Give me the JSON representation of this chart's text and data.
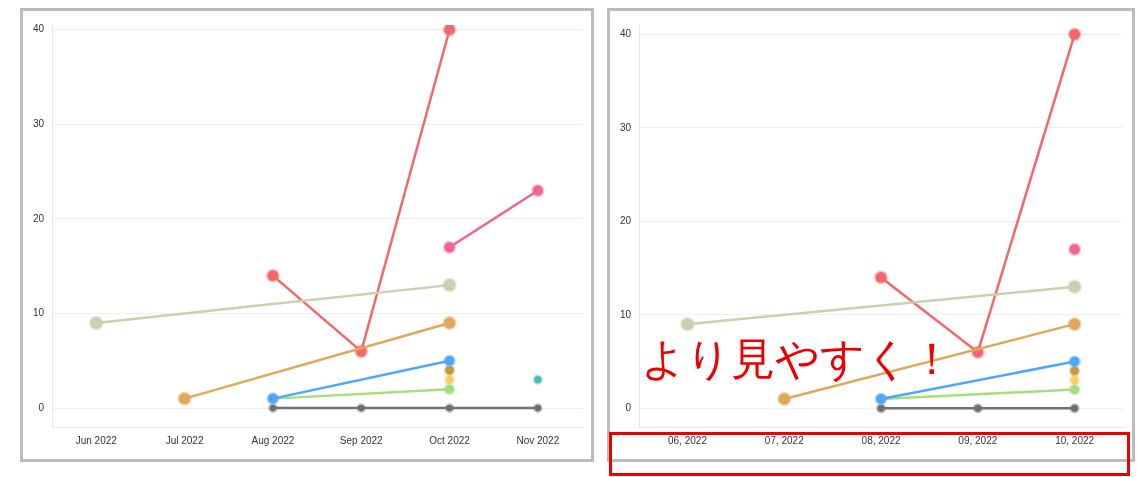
{
  "chart_data": [
    {
      "type": "line",
      "categories": [
        "Jun 2022",
        "Jul 2022",
        "Aug 2022",
        "Sep 2022",
        "Oct 2022",
        "Nov 2022"
      ],
      "ylim": [
        -2,
        40.5
      ],
      "yticks": [
        0,
        10,
        20,
        30,
        40
      ],
      "grid": "y",
      "marker": "circle",
      "series": [
        {
          "color": "#c5d3b0",
          "values": [
            9,
            null,
            null,
            null,
            13,
            null
          ]
        },
        {
          "color": "#dfa85a",
          "values": [
            null,
            1,
            null,
            null,
            9,
            null
          ]
        },
        {
          "color": "#f5676b",
          "values": [
            null,
            null,
            14,
            6,
            40,
            null
          ]
        },
        {
          "color": "#f06595",
          "values": [
            null,
            null,
            null,
            null,
            17,
            23
          ]
        },
        {
          "color": "#4da6ff",
          "values": [
            null,
            null,
            1,
            null,
            5,
            null
          ]
        },
        {
          "color": "#a6dd7d",
          "values": [
            null,
            null,
            1,
            null,
            2,
            null
          ]
        },
        {
          "color": "#c49a3a",
          "values": [
            null,
            null,
            null,
            null,
            4,
            null
          ]
        },
        {
          "color": "#ffcc5c",
          "values": [
            null,
            null,
            null,
            null,
            3,
            null
          ]
        },
        {
          "color": "#4dbdb5",
          "values": [
            null,
            null,
            null,
            null,
            null,
            3
          ]
        },
        {
          "color": "#707070",
          "values": [
            null,
            null,
            0,
            0,
            0,
            0
          ]
        }
      ]
    },
    {
      "type": "line",
      "categories": [
        "06, 2022",
        "07, 2022",
        "08, 2022",
        "09, 2022",
        "10, 2022"
      ],
      "ylim": [
        -2,
        41
      ],
      "yticks": [
        0,
        10,
        20,
        30,
        40
      ],
      "grid": "y",
      "marker": "circle",
      "annotations": [
        "より見やすく！"
      ],
      "series": [
        {
          "color": "#c5d3b0",
          "values": [
            9,
            null,
            null,
            null,
            13
          ]
        },
        {
          "color": "#dfa85a",
          "values": [
            null,
            1,
            null,
            null,
            9
          ]
        },
        {
          "color": "#f5676b",
          "values": [
            null,
            null,
            14,
            6,
            40
          ]
        },
        {
          "color": "#f06595",
          "values": [
            null,
            null,
            null,
            null,
            17
          ]
        },
        {
          "color": "#4da6ff",
          "values": [
            null,
            null,
            1,
            null,
            5
          ]
        },
        {
          "color": "#a6dd7d",
          "values": [
            null,
            null,
            1,
            null,
            2
          ]
        },
        {
          "color": "#c49a3a",
          "values": [
            null,
            null,
            null,
            null,
            4
          ]
        },
        {
          "color": "#ffcc5c",
          "values": [
            null,
            null,
            null,
            null,
            3
          ]
        },
        {
          "color": "#707070",
          "values": [
            null,
            null,
            0,
            0,
            0
          ]
        }
      ]
    }
  ]
}
